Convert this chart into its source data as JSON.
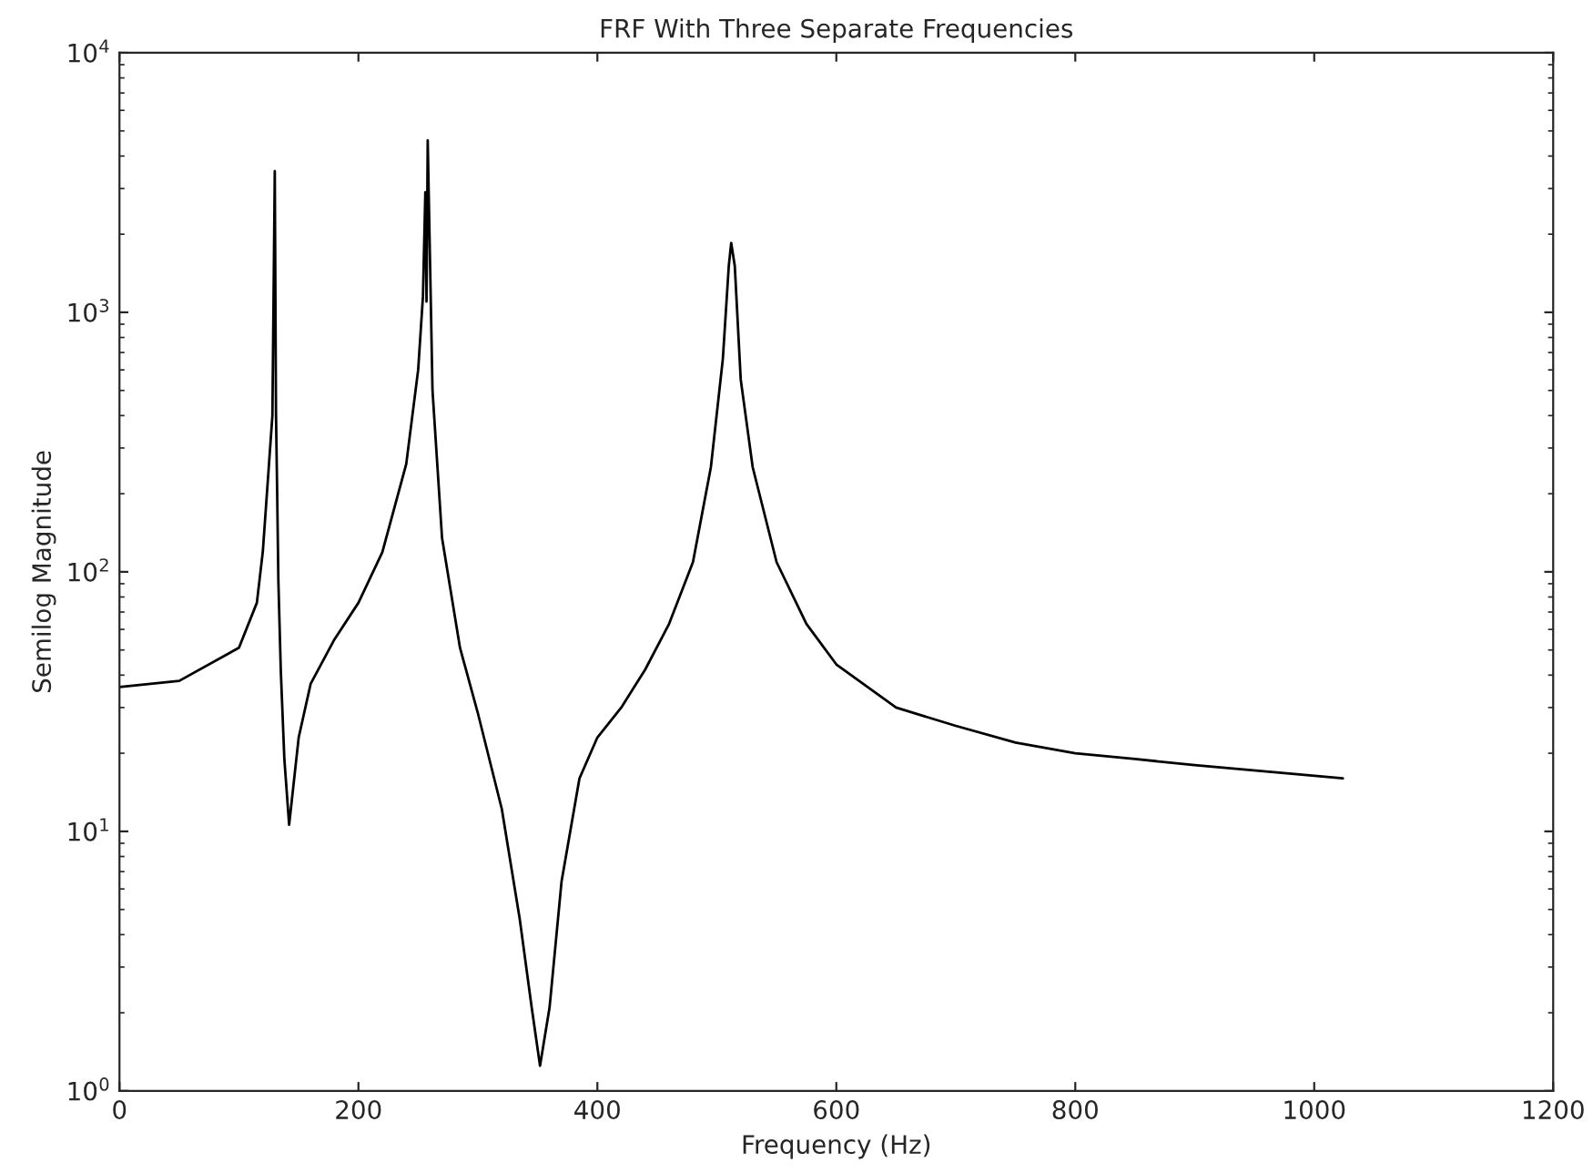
{
  "chart_data": {
    "type": "line",
    "title": "FRF With Three Separate Frequencies",
    "xlabel": "Frequency (Hz)",
    "ylabel": "Semilog Magnitude",
    "log": "y",
    "grid": false,
    "marker": "none",
    "line_style": "solid",
    "xlim": [
      0,
      1200
    ],
    "xticks": [
      0,
      200,
      400,
      600,
      800,
      1000,
      1200
    ],
    "ylim": [
      1,
      10000
    ],
    "yticks": [
      {
        "value": 1,
        "label": "10$^{0}$"
      },
      {
        "value": 10,
        "label": "10$^{1}$"
      },
      {
        "value": 100,
        "label": "10$^{2}$"
      },
      {
        "value": 1000,
        "label": "10$^{3}$"
      },
      {
        "value": 10000,
        "label": "10$^{4}$"
      }
    ],
    "series": [
      {
        "color": "#000000",
        "x": [
          0,
          50,
          100,
          115,
          120,
          128,
          130,
          131,
          132,
          133,
          135,
          138,
          142,
          150,
          160,
          180,
          200,
          220,
          240,
          250,
          254,
          256,
          257,
          258,
          262,
          270,
          285,
          300,
          320,
          335,
          345,
          352,
          360,
          370,
          385,
          400,
          420,
          440,
          460,
          480,
          495,
          505,
          510,
          512,
          515,
          520,
          530,
          550,
          575,
          600,
          650,
          700,
          750,
          800,
          850,
          900,
          1024
        ],
        "values": [
          36,
          38,
          51,
          76,
          120,
          400,
          3500,
          410,
          200,
          92,
          42,
          19,
          10.6,
          23,
          37,
          55,
          76,
          119,
          260,
          600,
          1150,
          2900,
          1100,
          4600,
          500,
          135,
          51,
          28.5,
          12.2,
          4.6,
          2.1,
          1.25,
          2.1,
          6.4,
          16,
          23,
          30,
          42,
          63,
          109,
          253,
          660,
          1510,
          1850,
          1510,
          550,
          253,
          109,
          63,
          44,
          30,
          25.5,
          22,
          20,
          19,
          18,
          16
        ]
      }
    ]
  }
}
